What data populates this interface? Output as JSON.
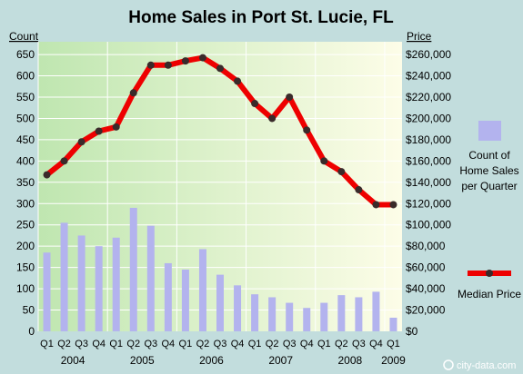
{
  "title": "Home Sales in Port St. Lucie, FL",
  "watermark": "city-data.com",
  "chart_data": {
    "type": "bar+line",
    "title": "Home Sales in Port St. Lucie, FL",
    "left_axis_label": "Count",
    "right_axis_label": "Price",
    "left_ylim": [
      0,
      680
    ],
    "left_ticks": [
      0,
      50,
      100,
      150,
      200,
      250,
      300,
      350,
      400,
      450,
      500,
      550,
      600,
      650
    ],
    "right_ylim": [
      0,
      272000
    ],
    "right_ticks": [
      "$0",
      "$20,000",
      "$40,000",
      "$60,000",
      "$80,000",
      "$100,000",
      "$120,000",
      "$140,000",
      "$160,000",
      "$180,000",
      "$200,000",
      "$220,000",
      "$240,000",
      "$260,000"
    ],
    "categories": [
      "Q1",
      "Q2",
      "Q3",
      "Q4",
      "Q1",
      "Q2",
      "Q3",
      "Q4",
      "Q1",
      "Q2",
      "Q3",
      "Q4",
      "Q1",
      "Q2",
      "Q3",
      "Q4",
      "Q1",
      "Q2",
      "Q3",
      "Q4",
      "Q1"
    ],
    "years": [
      {
        "label": "2004",
        "start": 0,
        "end": 3
      },
      {
        "label": "2005",
        "start": 4,
        "end": 7
      },
      {
        "label": "2006",
        "start": 8,
        "end": 11
      },
      {
        "label": "2007",
        "start": 12,
        "end": 15
      },
      {
        "label": "2008",
        "start": 16,
        "end": 19
      },
      {
        "label": "2009",
        "start": 20,
        "end": 20
      }
    ],
    "series": [
      {
        "name": "Count of Home Sales per Quarter",
        "type": "bar",
        "axis": "left",
        "color": "#b3b3ee",
        "values": [
          185,
          255,
          225,
          200,
          220,
          290,
          248,
          160,
          145,
          193,
          133,
          108,
          87,
          80,
          67,
          55,
          67,
          85,
          80,
          93,
          32
        ]
      },
      {
        "name": "Median Price",
        "type": "line",
        "axis": "right",
        "color": "#ee0000",
        "marker_color": "#3a2a2a",
        "values": [
          147000,
          160000,
          178000,
          188000,
          192000,
          224000,
          250000,
          250000,
          254000,
          257000,
          247000,
          235000,
          214000,
          200000,
          220000,
          189000,
          160000,
          150000,
          133000,
          119000,
          119000
        ]
      }
    ],
    "legend": {
      "position": "right",
      "bar_label_lines": [
        "Count of",
        "Home Sales",
        "per Quarter"
      ],
      "line_label": "Median Price"
    },
    "colors": {
      "plot_left": "#bfe6b0",
      "plot_right": "#fdfde8",
      "frame": "#c2dddd",
      "bar": "#b3b3ee",
      "line": "#ee0000",
      "marker": "#3a2a2a"
    }
  }
}
